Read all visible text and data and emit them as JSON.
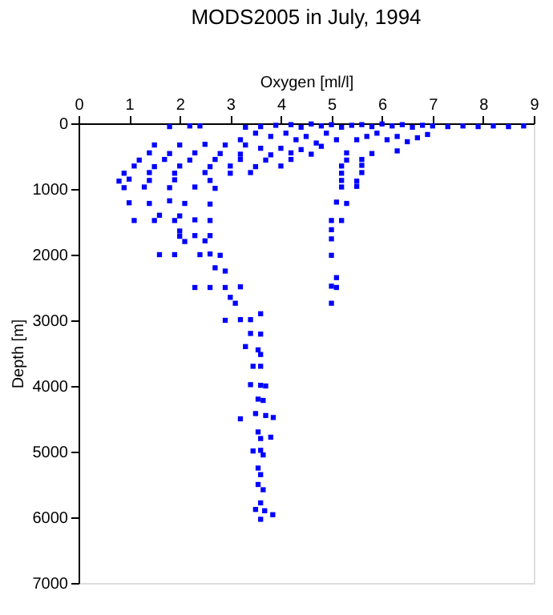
{
  "chart_data": {
    "type": "scatter",
    "title": "MODS2005 in July, 1994",
    "xlabel": "Oxygen [ml/l]",
    "ylabel": "Depth [m]",
    "xlim": [
      0,
      9
    ],
    "xticks": [
      0,
      1,
      2,
      3,
      4,
      5,
      6,
      7,
      8,
      9
    ],
    "ylim": [
      7000,
      0
    ],
    "yticks": [
      0,
      1000,
      2000,
      3000,
      4000,
      5000,
      6000,
      7000
    ],
    "grid": false,
    "marker": "square",
    "series": [
      {
        "color": "#0000ff",
        "x": [
          1.8,
          2.2,
          2.4,
          3.3,
          3.6,
          3.9,
          4.2,
          4.4,
          4.6,
          4.8,
          5.0,
          5.2,
          5.4,
          5.6,
          5.8,
          6.0,
          6.2,
          6.4,
          6.6,
          6.8,
          7.0,
          7.3,
          7.6,
          7.9,
          8.2,
          8.5,
          8.8,
          3.2,
          3.5,
          3.8,
          4.1,
          4.3,
          4.5,
          4.7,
          4.9,
          5.1,
          5.5,
          5.7,
          5.9,
          6.1,
          6.3,
          6.5,
          6.7,
          6.9,
          1.5,
          2.0,
          2.5,
          2.9,
          3.3,
          3.6,
          4.0,
          4.4,
          4.8,
          1.4,
          1.8,
          2.3,
          2.8,
          3.2,
          3.8,
          4.2,
          4.6,
          5.3,
          5.8,
          6.3,
          1.2,
          1.7,
          2.2,
          2.7,
          3.2,
          3.7,
          4.2,
          5.3,
          5.6,
          1.1,
          1.5,
          2.0,
          2.6,
          3.0,
          3.5,
          4.0,
          5.2,
          5.6,
          0.9,
          1.4,
          1.9,
          2.5,
          3.0,
          3.4,
          5.2,
          5.6,
          0.8,
          1.0,
          1.4,
          1.9,
          2.6,
          5.2,
          5.5,
          0.9,
          1.3,
          1.8,
          2.3,
          2.7,
          5.2,
          5.5,
          1.0,
          1.4,
          1.8,
          2.1,
          2.6,
          5.1,
          5.3,
          1.6,
          2.0,
          1.1,
          1.5,
          1.9,
          2.3,
          2.6,
          5.0,
          5.2,
          5.0,
          2.0,
          2.0,
          2.3,
          2.6,
          5.0,
          2.1,
          2.5,
          1.6,
          1.9,
          2.4,
          2.6,
          2.8,
          5.0,
          2.7,
          2.9,
          5.1,
          2.3,
          2.6,
          2.9,
          3.2,
          5.0,
          5.1,
          5.0,
          3.0,
          3.1,
          2.9,
          3.2,
          3.4,
          3.6,
          3.4,
          3.6,
          3.3,
          3.55,
          3.6,
          3.45,
          3.6,
          3.4,
          3.6,
          3.7,
          3.55,
          3.65,
          3.2,
          3.5,
          3.7,
          3.85,
          3.55,
          3.8,
          3.6,
          3.45,
          3.6,
          3.65,
          3.55,
          3.6,
          3.55,
          3.65,
          3.6,
          3.5,
          3.68,
          3.84,
          3.6
        ],
        "values": [
          50,
          40,
          40,
          60,
          50,
          30,
          20,
          60,
          10,
          40,
          20,
          60,
          30,
          20,
          50,
          10,
          40,
          20,
          60,
          30,
          40,
          50,
          40,
          50,
          40,
          50,
          40,
          250,
          150,
          200,
          150,
          250,
          200,
          300,
          150,
          250,
          250,
          200,
          150,
          250,
          200,
          280,
          220,
          170,
          330,
          330,
          320,
          330,
          330,
          380,
          380,
          400,
          350,
          450,
          460,
          450,
          460,
          470,
          480,
          450,
          470,
          450,
          460,
          420,
          560,
          550,
          560,
          550,
          550,
          560,
          550,
          560,
          550,
          650,
          660,
          650,
          660,
          650,
          660,
          650,
          650,
          640,
          760,
          750,
          760,
          750,
          760,
          750,
          760,
          750,
          880,
          850,
          870,
          860,
          870,
          870,
          880,
          980,
          970,
          980,
          970,
          990,
          970,
          960,
          1210,
          1220,
          1180,
          1220,
          1230,
          1200,
          1220,
          1400,
          1410,
          1480,
          1480,
          1480,
          1470,
          1480,
          1480,
          1480,
          1620,
          1640,
          1720,
          1710,
          1710,
          1760,
          1800,
          1790,
          2000,
          2000,
          2000,
          1990,
          2010,
          2010,
          2200,
          2250,
          2350,
          2500,
          2500,
          2500,
          2490,
          2480,
          2500,
          2740,
          2650,
          2740,
          3000,
          2990,
          2990,
          2900,
          3200,
          3210,
          3400,
          3450,
          3520,
          3700,
          3700,
          3980,
          3990,
          4000,
          4200,
          4220,
          4500,
          4420,
          4450,
          4480,
          4700,
          4780,
          4800,
          4990,
          4980,
          5050,
          5250,
          5350,
          5500,
          5580,
          5780,
          5880,
          5900,
          5960,
          6030
        ]
      }
    ]
  }
}
